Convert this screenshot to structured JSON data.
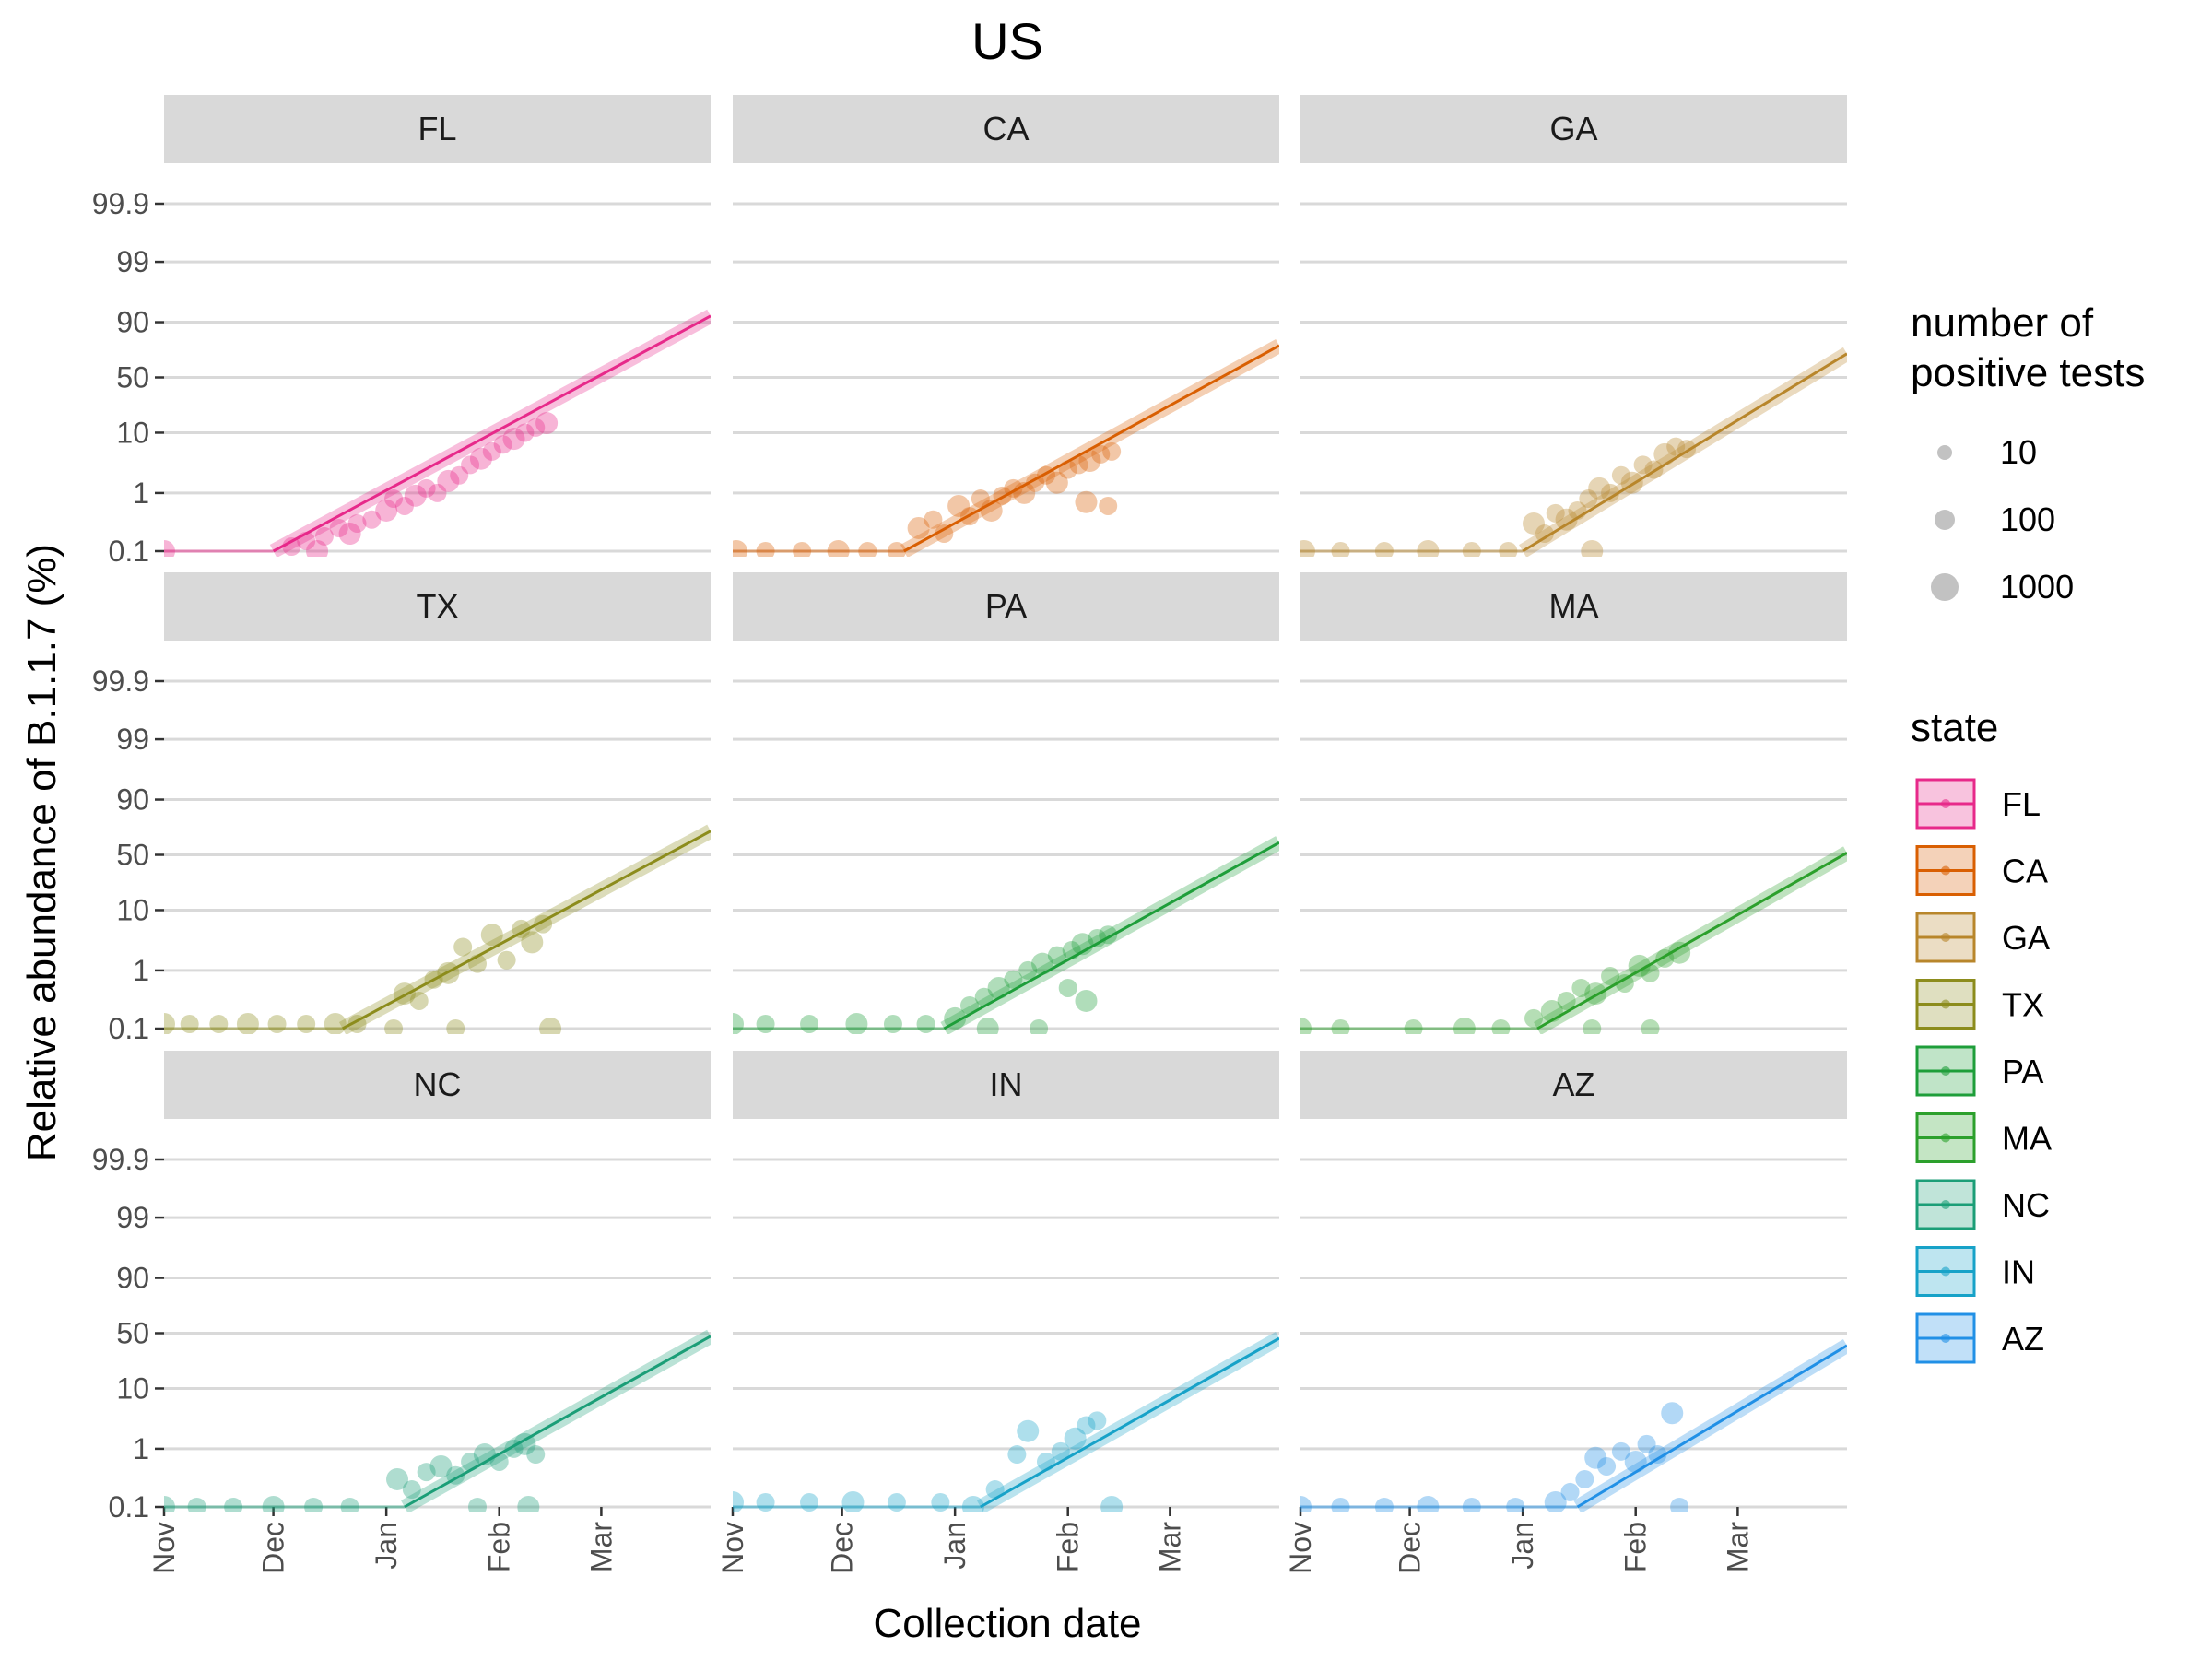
{
  "chart_data": {
    "type": "scatter",
    "title": "US",
    "xlabel": "Collection date",
    "ylabel": "Relative abundance of B.1.1.7 (%)",
    "y_scale": "logit",
    "x_ticks": [
      "Nov",
      "Dec",
      "Jan",
      "Feb",
      "Mar"
    ],
    "y_ticks": [
      "0.1",
      "1",
      "10",
      "50",
      "90",
      "99",
      "99.9"
    ],
    "xlim": [
      "2020-11-01",
      "2021-03-31"
    ],
    "ylim": [
      0.1,
      99.9
    ],
    "grid": true,
    "legend_size": {
      "title": "number of\npositive tests",
      "labels": [
        "10",
        "100",
        "1000"
      ]
    },
    "legend_color": {
      "title": "state",
      "placement": "right"
    },
    "panels": [
      {
        "state": "FL",
        "color": "#e7298a",
        "fit": {
          "start": [
            "2020-12-01",
            0.1
          ],
          "end": [
            "2021-03-31",
            92
          ]
        },
        "points": [
          [
            "2020-11-01",
            0.1
          ],
          [
            "2020-12-06",
            0.12
          ],
          [
            "2020-12-10",
            0.15
          ],
          [
            "2020-12-13",
            0.1
          ],
          [
            "2020-12-15",
            0.18
          ],
          [
            "2020-12-19",
            0.25
          ],
          [
            "2020-12-22",
            0.2
          ],
          [
            "2020-12-24",
            0.3
          ],
          [
            "2020-12-28",
            0.35
          ],
          [
            "2021-01-01",
            0.5
          ],
          [
            "2021-01-03",
            0.8
          ],
          [
            "2021-01-06",
            0.6
          ],
          [
            "2021-01-09",
            0.9
          ],
          [
            "2021-01-12",
            1.2
          ],
          [
            "2021-01-15",
            1.0
          ],
          [
            "2021-01-18",
            1.6
          ],
          [
            "2021-01-21",
            2.0
          ],
          [
            "2021-01-24",
            3.0
          ],
          [
            "2021-01-27",
            3.8
          ],
          [
            "2021-01-30",
            5.0
          ],
          [
            "2021-02-02",
            6.5
          ],
          [
            "2021-02-05",
            8.0
          ],
          [
            "2021-02-08",
            10.0
          ],
          [
            "2021-02-11",
            12.0
          ],
          [
            "2021-02-14",
            14.0
          ]
        ]
      },
      {
        "state": "CA",
        "color": "#d95f02",
        "fit": {
          "start": [
            "2020-12-18",
            0.1
          ],
          "end": [
            "2021-03-31",
            78
          ]
        },
        "points": [
          [
            "2020-11-02",
            0.1
          ],
          [
            "2020-11-10",
            0.1
          ],
          [
            "2020-11-20",
            0.1
          ],
          [
            "2020-11-30",
            0.1
          ],
          [
            "2020-12-08",
            0.1
          ],
          [
            "2020-12-16",
            0.1
          ],
          [
            "2020-12-22",
            0.25
          ],
          [
            "2020-12-26",
            0.35
          ],
          [
            "2020-12-29",
            0.2
          ],
          [
            "2021-01-02",
            0.6
          ],
          [
            "2021-01-05",
            0.4
          ],
          [
            "2021-01-08",
            0.8
          ],
          [
            "2021-01-11",
            0.5
          ],
          [
            "2021-01-14",
            0.9
          ],
          [
            "2021-01-17",
            1.2
          ],
          [
            "2021-01-20",
            1.0
          ],
          [
            "2021-01-23",
            1.5
          ],
          [
            "2021-01-26",
            2.0
          ],
          [
            "2021-01-29",
            1.5
          ],
          [
            "2021-02-01",
            2.5
          ],
          [
            "2021-02-04",
            3.0
          ],
          [
            "2021-02-07",
            3.5
          ],
          [
            "2021-02-10",
            4.5
          ],
          [
            "2021-02-13",
            5.0
          ],
          [
            "2021-02-06",
            0.7
          ],
          [
            "2021-02-12",
            0.6
          ]
        ]
      },
      {
        "state": "GA",
        "color": "#b8862b",
        "fit": {
          "start": [
            "2021-01-01",
            0.1
          ],
          "end": [
            "2021-03-31",
            72
          ]
        },
        "points": [
          [
            "2020-11-02",
            0.1
          ],
          [
            "2020-11-12",
            0.1
          ],
          [
            "2020-11-24",
            0.1
          ],
          [
            "2020-12-06",
            0.1
          ],
          [
            "2020-12-18",
            0.1
          ],
          [
            "2020-12-28",
            0.1
          ],
          [
            "2021-01-04",
            0.3
          ],
          [
            "2021-01-07",
            0.2
          ],
          [
            "2021-01-10",
            0.45
          ],
          [
            "2021-01-13",
            0.35
          ],
          [
            "2021-01-16",
            0.5
          ],
          [
            "2021-01-19",
            0.8
          ],
          [
            "2021-01-22",
            1.2
          ],
          [
            "2021-01-25",
            1.0
          ],
          [
            "2021-01-28",
            2.0
          ],
          [
            "2021-01-31",
            1.5
          ],
          [
            "2021-02-03",
            3.0
          ],
          [
            "2021-02-06",
            2.5
          ],
          [
            "2021-02-09",
            4.5
          ],
          [
            "2021-02-12",
            6.0
          ],
          [
            "2021-02-15",
            5.5
          ],
          [
            "2021-01-20",
            0.1
          ]
        ]
      },
      {
        "state": "TX",
        "color": "#8c8c1c",
        "fit": {
          "start": [
            "2020-12-20",
            0.1
          ],
          "end": [
            "2021-03-31",
            72
          ]
        },
        "points": [
          [
            "2020-11-01",
            0.12
          ],
          [
            "2020-11-08",
            0.12
          ],
          [
            "2020-11-16",
            0.12
          ],
          [
            "2020-11-24",
            0.12
          ],
          [
            "2020-12-02",
            0.12
          ],
          [
            "2020-12-10",
            0.12
          ],
          [
            "2020-12-18",
            0.12
          ],
          [
            "2020-12-24",
            0.12
          ],
          [
            "2021-01-03",
            0.1
          ],
          [
            "2021-01-06",
            0.4
          ],
          [
            "2021-01-10",
            0.3
          ],
          [
            "2021-01-14",
            0.7
          ],
          [
            "2021-01-18",
            0.9
          ],
          [
            "2021-01-22",
            2.5
          ],
          [
            "2021-01-26",
            1.3
          ],
          [
            "2021-01-30",
            4.0
          ],
          [
            "2021-02-03",
            1.5
          ],
          [
            "2021-02-07",
            5.0
          ],
          [
            "2021-02-10",
            3.0
          ],
          [
            "2021-02-13",
            6.0
          ],
          [
            "2021-01-20",
            0.1
          ],
          [
            "2021-02-15",
            0.1
          ]
        ]
      },
      {
        "state": "PA",
        "color": "#1e9e3a",
        "fit": {
          "start": [
            "2020-12-29",
            0.1
          ],
          "end": [
            "2021-03-31",
            62
          ]
        },
        "points": [
          [
            "2020-11-01",
            0.12
          ],
          [
            "2020-11-10",
            0.12
          ],
          [
            "2020-11-22",
            0.12
          ],
          [
            "2020-12-05",
            0.12
          ],
          [
            "2020-12-15",
            0.12
          ],
          [
            "2020-12-24",
            0.12
          ],
          [
            "2021-01-01",
            0.15
          ],
          [
            "2021-01-05",
            0.25
          ],
          [
            "2021-01-09",
            0.35
          ],
          [
            "2021-01-13",
            0.5
          ],
          [
            "2021-01-17",
            0.7
          ],
          [
            "2021-01-21",
            1.0
          ],
          [
            "2021-01-25",
            1.3
          ],
          [
            "2021-01-29",
            1.8
          ],
          [
            "2021-02-02",
            2.2
          ],
          [
            "2021-02-05",
            2.8
          ],
          [
            "2021-02-09",
            3.5
          ],
          [
            "2021-02-12",
            4.0
          ],
          [
            "2021-01-10",
            0.1
          ],
          [
            "2021-01-24",
            0.1
          ],
          [
            "2021-02-01",
            0.5
          ],
          [
            "2021-02-06",
            0.3
          ]
        ]
      },
      {
        "state": "MA",
        "color": "#2ca02c",
        "fit": {
          "start": [
            "2021-01-05",
            0.1
          ],
          "end": [
            "2021-03-31",
            52
          ]
        },
        "points": [
          [
            "2020-11-01",
            0.1
          ],
          [
            "2020-11-12",
            0.1
          ],
          [
            "2020-12-02",
            0.1
          ],
          [
            "2020-12-16",
            0.1
          ],
          [
            "2020-12-26",
            0.1
          ],
          [
            "2021-01-04",
            0.15
          ],
          [
            "2021-01-09",
            0.2
          ],
          [
            "2021-01-13",
            0.3
          ],
          [
            "2021-01-17",
            0.5
          ],
          [
            "2021-01-21",
            0.4
          ],
          [
            "2021-01-25",
            0.8
          ],
          [
            "2021-01-29",
            0.6
          ],
          [
            "2021-02-02",
            1.2
          ],
          [
            "2021-02-05",
            0.9
          ],
          [
            "2021-02-09",
            1.6
          ],
          [
            "2021-02-13",
            2.0
          ],
          [
            "2021-01-20",
            0.1
          ],
          [
            "2021-02-05",
            0.1
          ]
        ]
      },
      {
        "state": "NC",
        "color": "#1b9e77",
        "fit": {
          "start": [
            "2021-01-06",
            0.1
          ],
          "end": [
            "2021-03-31",
            47
          ]
        },
        "points": [
          [
            "2020-11-01",
            0.1
          ],
          [
            "2020-11-10",
            0.1
          ],
          [
            "2020-11-20",
            0.1
          ],
          [
            "2020-12-01",
            0.1
          ],
          [
            "2020-12-12",
            0.1
          ],
          [
            "2020-12-22",
            0.1
          ],
          [
            "2021-01-04",
            0.3
          ],
          [
            "2021-01-08",
            0.2
          ],
          [
            "2021-01-12",
            0.4
          ],
          [
            "2021-01-16",
            0.5
          ],
          [
            "2021-01-20",
            0.35
          ],
          [
            "2021-01-24",
            0.6
          ],
          [
            "2021-01-28",
            0.8
          ],
          [
            "2021-02-01",
            0.6
          ],
          [
            "2021-02-05",
            1.0
          ],
          [
            "2021-02-08",
            1.2
          ],
          [
            "2021-02-11",
            0.8
          ],
          [
            "2021-01-26",
            0.1
          ],
          [
            "2021-02-09",
            0.1
          ]
        ]
      },
      {
        "state": "IN",
        "color": "#17a2c8",
        "fit": {
          "start": [
            "2021-01-08",
            0.1
          ],
          "end": [
            "2021-03-31",
            45
          ]
        },
        "points": [
          [
            "2020-11-01",
            0.12
          ],
          [
            "2020-11-10",
            0.12
          ],
          [
            "2020-11-22",
            0.12
          ],
          [
            "2020-12-04",
            0.12
          ],
          [
            "2020-12-16",
            0.12
          ],
          [
            "2020-12-28",
            0.12
          ],
          [
            "2021-01-06",
            0.1
          ],
          [
            "2021-01-12",
            0.2
          ],
          [
            "2021-01-18",
            0.8
          ],
          [
            "2021-01-21",
            2.0
          ],
          [
            "2021-01-26",
            0.6
          ],
          [
            "2021-01-30",
            0.9
          ],
          [
            "2021-02-03",
            1.5
          ],
          [
            "2021-02-06",
            2.5
          ],
          [
            "2021-02-09",
            3.0
          ],
          [
            "2021-02-13",
            0.1
          ]
        ]
      },
      {
        "state": "AZ",
        "color": "#2190e6",
        "fit": {
          "start": [
            "2021-01-16",
            0.1
          ],
          "end": [
            "2021-03-31",
            38
          ]
        },
        "points": [
          [
            "2020-11-01",
            0.1
          ],
          [
            "2020-11-12",
            0.1
          ],
          [
            "2020-11-24",
            0.1
          ],
          [
            "2020-12-06",
            0.1
          ],
          [
            "2020-12-18",
            0.1
          ],
          [
            "2020-12-30",
            0.1
          ],
          [
            "2021-01-10",
            0.12
          ],
          [
            "2021-01-14",
            0.18
          ],
          [
            "2021-01-18",
            0.3
          ],
          [
            "2021-01-21",
            0.7
          ],
          [
            "2021-01-24",
            0.5
          ],
          [
            "2021-01-28",
            0.9
          ],
          [
            "2021-02-01",
            0.6
          ],
          [
            "2021-02-04",
            1.2
          ],
          [
            "2021-02-07",
            0.8
          ],
          [
            "2021-02-11",
            4.0
          ],
          [
            "2021-02-13",
            0.1
          ]
        ]
      }
    ]
  }
}
